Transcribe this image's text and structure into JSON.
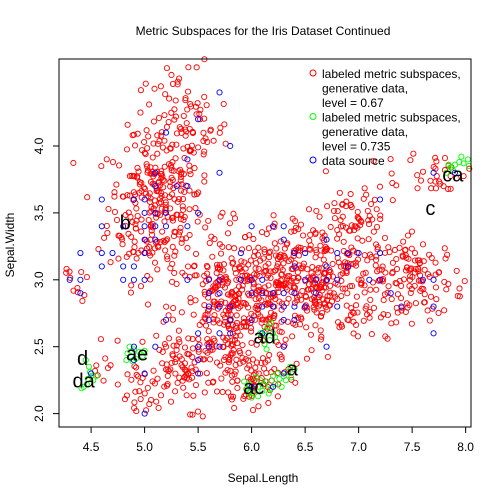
{
  "chart_data": {
    "type": "scatter",
    "title": "Metric Subspaces for the Iris Dataset Continued",
    "xlabel": "Sepal.Length",
    "ylabel": "Sepal.Width",
    "xlim": [
      4.2,
      8.05
    ],
    "ylim": [
      1.9,
      4.65
    ],
    "x_ticks": [
      "4.5",
      "5.0",
      "5.5",
      "6.0",
      "6.5",
      "7.0",
      "7.5",
      "8.0"
    ],
    "y_ticks": [
      "2.0",
      "2.5",
      "3.0",
      "3.5",
      "4.0"
    ],
    "grid": false,
    "legend_position": "top-right",
    "legend": [
      {
        "label": "labeled metric subspaces,\ngenerative data,\nlevel = 0.67",
        "color": "#FF0000"
      },
      {
        "label": "labeled metric subspaces,\ngenerative data,\nlevel = 0.735",
        "color": "#00FF00"
      },
      {
        "label": "data source",
        "color": "#0000FF"
      }
    ],
    "cluster_labels": [
      {
        "text": "b",
        "x": 4.82,
        "y": 3.42
      },
      {
        "text": "c",
        "x": 7.67,
        "y": 3.53
      },
      {
        "text": "ca",
        "x": 7.88,
        "y": 3.78
      },
      {
        "text": "ad",
        "x": 6.12,
        "y": 2.57
      },
      {
        "text": "ae",
        "x": 4.93,
        "y": 2.44
      },
      {
        "text": "a",
        "x": 6.38,
        "y": 2.33
      },
      {
        "text": "d",
        "x": 4.42,
        "y": 2.41
      },
      {
        "text": "da",
        "x": 4.43,
        "y": 2.24
      },
      {
        "text": "ac",
        "x": 6.02,
        "y": 2.19
      }
    ],
    "series": [
      {
        "name": "data source",
        "color": "#0000FF",
        "points": [
          [
            4.3,
            3.0
          ],
          [
            4.4,
            2.9
          ],
          [
            4.4,
            3.0
          ],
          [
            4.4,
            3.2
          ],
          [
            4.5,
            2.3
          ],
          [
            4.6,
            3.1
          ],
          [
            4.6,
            3.4
          ],
          [
            4.6,
            3.6
          ],
          [
            4.6,
            3.2
          ],
          [
            4.7,
            3.2
          ],
          [
            4.8,
            3.4
          ],
          [
            4.8,
            3.0
          ],
          [
            4.8,
            3.1
          ],
          [
            4.9,
            3.0
          ],
          [
            4.9,
            3.1
          ],
          [
            4.9,
            2.5
          ],
          [
            4.9,
            2.4
          ],
          [
            4.9,
            3.6
          ],
          [
            5.0,
            3.6
          ],
          [
            5.0,
            3.4
          ],
          [
            5.0,
            3.0
          ],
          [
            5.0,
            3.3
          ],
          [
            5.0,
            3.2
          ],
          [
            5.0,
            3.5
          ],
          [
            5.0,
            2.0
          ],
          [
            5.0,
            2.3
          ],
          [
            5.1,
            3.5
          ],
          [
            5.1,
            3.8
          ],
          [
            5.1,
            3.7
          ],
          [
            5.1,
            3.3
          ],
          [
            5.1,
            3.4
          ],
          [
            5.1,
            2.5
          ],
          [
            5.2,
            3.5
          ],
          [
            5.2,
            3.4
          ],
          [
            5.2,
            4.1
          ],
          [
            5.2,
            2.7
          ],
          [
            5.3,
            3.7
          ],
          [
            5.4,
            3.9
          ],
          [
            5.4,
            3.7
          ],
          [
            5.4,
            3.4
          ],
          [
            5.4,
            3.0
          ],
          [
            5.5,
            4.2
          ],
          [
            5.5,
            3.5
          ],
          [
            5.5,
            2.3
          ],
          [
            5.5,
            2.4
          ],
          [
            5.5,
            2.6
          ],
          [
            5.5,
            2.5
          ],
          [
            5.6,
            2.9
          ],
          [
            5.6,
            3.0
          ],
          [
            5.6,
            2.5
          ],
          [
            5.6,
            2.7
          ],
          [
            5.6,
            2.8
          ],
          [
            5.7,
            4.4
          ],
          [
            5.7,
            3.8
          ],
          [
            5.7,
            2.8
          ],
          [
            5.7,
            2.6
          ],
          [
            5.7,
            3.0
          ],
          [
            5.7,
            2.9
          ],
          [
            5.7,
            2.5
          ],
          [
            5.8,
            4.0
          ],
          [
            5.8,
            2.7
          ],
          [
            5.8,
            2.6
          ],
          [
            5.8,
            2.8
          ],
          [
            5.9,
            3.0
          ],
          [
            5.9,
            3.2
          ],
          [
            6.0,
            2.2
          ],
          [
            6.0,
            2.9
          ],
          [
            6.0,
            2.7
          ],
          [
            6.0,
            3.4
          ],
          [
            6.0,
            3.0
          ],
          [
            6.0,
            2.2
          ],
          [
            6.1,
            2.9
          ],
          [
            6.1,
            2.8
          ],
          [
            6.1,
            3.0
          ],
          [
            6.1,
            2.6
          ],
          [
            6.2,
            2.2
          ],
          [
            6.2,
            2.9
          ],
          [
            6.2,
            3.4
          ],
          [
            6.2,
            2.8
          ],
          [
            6.3,
            3.3
          ],
          [
            6.3,
            2.5
          ],
          [
            6.3,
            2.3
          ],
          [
            6.3,
            2.9
          ],
          [
            6.3,
            2.7
          ],
          [
            6.3,
            2.8
          ],
          [
            6.3,
            3.4
          ],
          [
            6.4,
            3.2
          ],
          [
            6.4,
            2.9
          ],
          [
            6.4,
            2.7
          ],
          [
            6.4,
            2.8
          ],
          [
            6.4,
            3.1
          ],
          [
            6.5,
            2.8
          ],
          [
            6.5,
            3.0
          ],
          [
            6.5,
            3.2
          ],
          [
            6.6,
            2.9
          ],
          [
            6.6,
            3.0
          ],
          [
            6.7,
            3.1
          ],
          [
            6.7,
            3.0
          ],
          [
            6.7,
            2.5
          ],
          [
            6.7,
            3.3
          ],
          [
            6.8,
            2.8
          ],
          [
            6.8,
            3.0
          ],
          [
            6.8,
            3.2
          ],
          [
            6.9,
            3.1
          ],
          [
            6.9,
            3.2
          ],
          [
            7.0,
            3.2
          ],
          [
            7.1,
            3.0
          ],
          [
            7.2,
            3.6
          ],
          [
            7.2,
            3.2
          ],
          [
            7.2,
            3.0
          ],
          [
            7.3,
            2.9
          ],
          [
            7.4,
            2.8
          ],
          [
            7.6,
            3.0
          ],
          [
            7.7,
            3.8
          ],
          [
            7.7,
            2.6
          ],
          [
            7.7,
            2.8
          ],
          [
            7.7,
            3.0
          ],
          [
            7.9,
            3.8
          ]
        ]
      },
      {
        "name": "labeled metric subspaces, generative data, level = 0.735",
        "color": "#00FF00",
        "points": [
          [
            4.45,
            2.4
          ],
          [
            4.48,
            2.35
          ],
          [
            4.5,
            2.28
          ],
          [
            4.46,
            2.22
          ],
          [
            4.43,
            2.2
          ],
          [
            4.52,
            2.25
          ],
          [
            4.49,
            2.31
          ],
          [
            4.41,
            2.19
          ],
          [
            4.55,
            2.28
          ],
          [
            4.47,
            2.26
          ],
          [
            4.84,
            2.45
          ],
          [
            4.87,
            2.43
          ],
          [
            4.9,
            2.48
          ],
          [
            4.92,
            2.41
          ],
          [
            4.95,
            2.46
          ],
          [
            4.86,
            2.5
          ],
          [
            4.98,
            2.43
          ],
          [
            4.89,
            2.39
          ],
          [
            5.0,
            2.47
          ],
          [
            4.83,
            2.4
          ],
          [
            6.1,
            2.58
          ],
          [
            6.13,
            2.62
          ],
          [
            6.17,
            2.55
          ],
          [
            6.2,
            2.6
          ],
          [
            6.15,
            2.65
          ],
          [
            6.12,
            2.52
          ],
          [
            6.22,
            2.57
          ],
          [
            6.18,
            2.68
          ],
          [
            6.08,
            2.6
          ],
          [
            6.14,
            2.48
          ],
          [
            5.95,
            2.18
          ],
          [
            5.98,
            2.22
          ],
          [
            6.02,
            2.15
          ],
          [
            6.06,
            2.2
          ],
          [
            6.1,
            2.17
          ],
          [
            6.14,
            2.24
          ],
          [
            6.18,
            2.19
          ],
          [
            6.22,
            2.22
          ],
          [
            6.26,
            2.26
          ],
          [
            6.04,
            2.27
          ],
          [
            6.0,
            2.12
          ],
          [
            6.08,
            2.25
          ],
          [
            6.16,
            2.15
          ],
          [
            6.2,
            2.28
          ],
          [
            5.93,
            2.24
          ],
          [
            6.28,
            2.2
          ],
          [
            6.24,
            2.3
          ],
          [
            6.12,
            2.21
          ],
          [
            5.97,
            2.16
          ],
          [
            6.06,
            2.13
          ],
          [
            6.3,
            2.28
          ],
          [
            6.34,
            2.31
          ],
          [
            6.37,
            2.27
          ],
          [
            6.4,
            2.33
          ],
          [
            6.32,
            2.25
          ],
          [
            6.36,
            2.35
          ],
          [
            7.82,
            3.8
          ],
          [
            7.86,
            3.84
          ],
          [
            7.9,
            3.86
          ],
          [
            7.94,
            3.88
          ],
          [
            7.98,
            3.87
          ],
          [
            8.02,
            3.9
          ],
          [
            7.88,
            3.82
          ],
          [
            7.96,
            3.92
          ],
          [
            8.03,
            3.85
          ],
          [
            7.84,
            3.86
          ]
        ]
      }
    ],
    "red_clusters": [
      {
        "cx": 5.1,
        "cy": 3.55,
        "sx": 0.22,
        "sy": 0.28,
        "n": 250
      },
      {
        "cx": 5.35,
        "cy": 4.1,
        "sx": 0.22,
        "sy": 0.25,
        "n": 110
      },
      {
        "cx": 5.85,
        "cy": 2.78,
        "sx": 0.28,
        "sy": 0.22,
        "n": 260
      },
      {
        "cx": 6.5,
        "cy": 3.0,
        "sx": 0.42,
        "sy": 0.22,
        "n": 420
      },
      {
        "cx": 7.55,
        "cy": 3.0,
        "sx": 0.22,
        "sy": 0.15,
        "n": 110
      },
      {
        "cx": 5.45,
        "cy": 2.35,
        "sx": 0.25,
        "sy": 0.15,
        "n": 110
      },
      {
        "cx": 6.95,
        "cy": 3.45,
        "sx": 0.22,
        "sy": 0.15,
        "n": 60
      },
      {
        "cx": 4.95,
        "cy": 2.15,
        "sx": 0.1,
        "sy": 0.15,
        "n": 25
      },
      {
        "cx": 6.0,
        "cy": 2.25,
        "sx": 0.18,
        "sy": 0.1,
        "n": 60
      },
      {
        "cx": 7.75,
        "cy": 3.8,
        "sx": 0.15,
        "sy": 0.08,
        "n": 30
      },
      {
        "cx": 4.6,
        "cy": 2.4,
        "sx": 0.08,
        "sy": 0.1,
        "n": 10
      },
      {
        "cx": 4.4,
        "cy": 3.05,
        "sx": 0.08,
        "sy": 0.15,
        "n": 12
      }
    ]
  }
}
